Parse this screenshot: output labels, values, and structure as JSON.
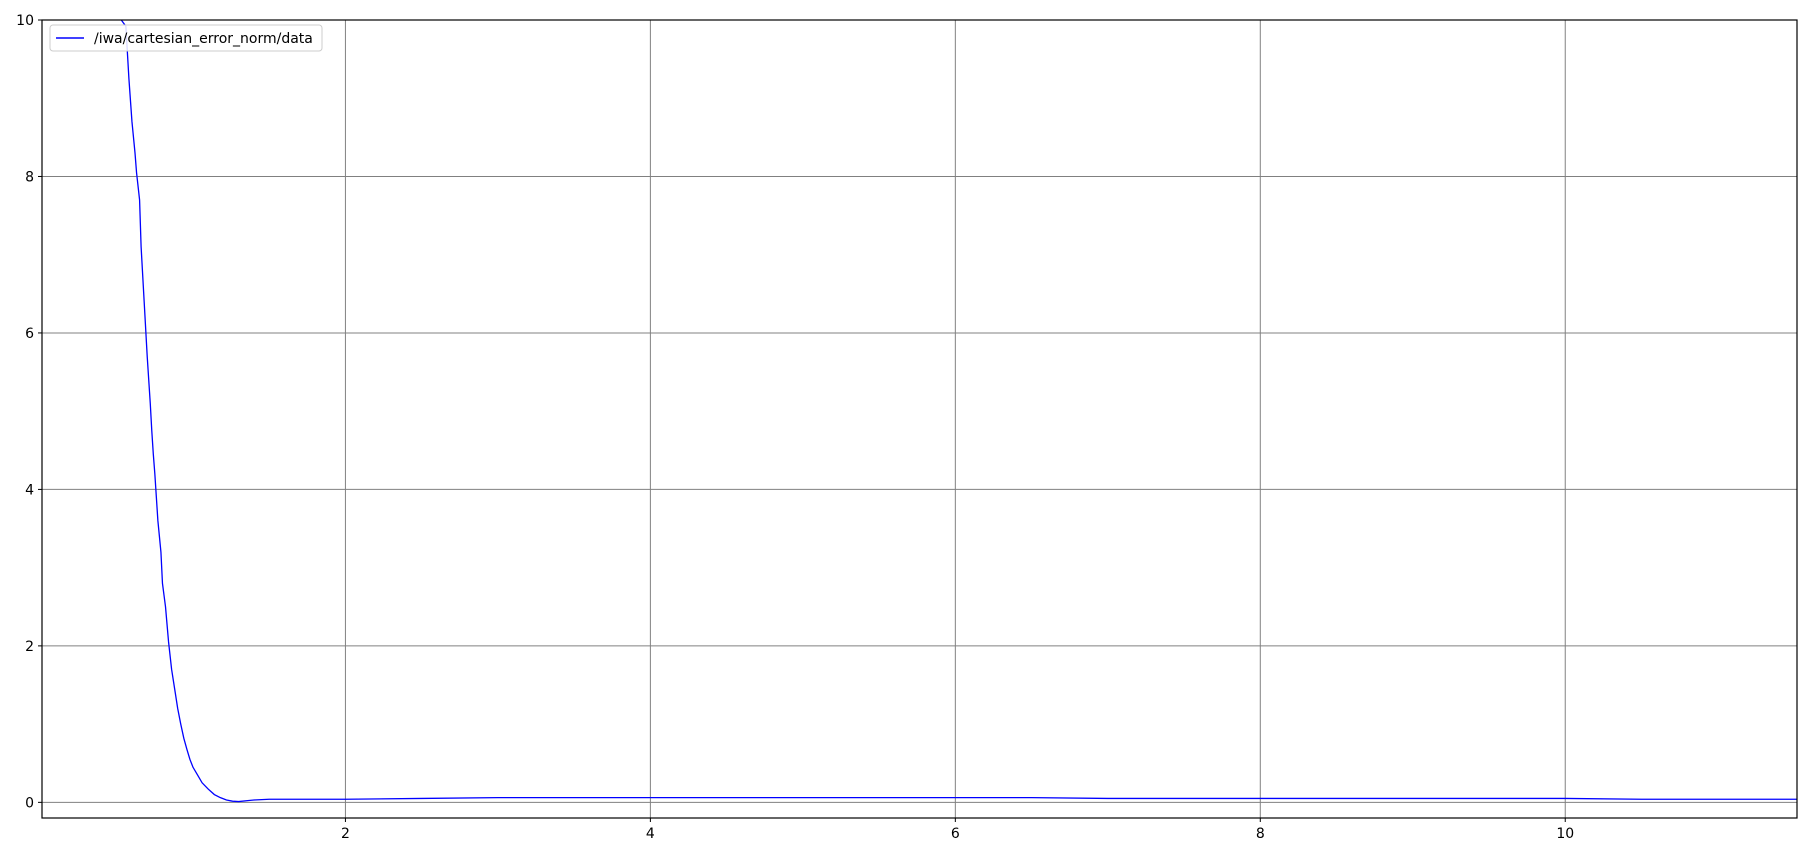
{
  "chart_data": {
    "type": "line",
    "title": "",
    "xlabel": "",
    "ylabel": "",
    "xlim": [
      0.01,
      11.52
    ],
    "ylim": [
      -0.2,
      10
    ],
    "grid": true,
    "legend_position": "top-left",
    "x_ticks": [
      2,
      4,
      6,
      8,
      10
    ],
    "x_tick_labels": [
      "2",
      "4",
      "6",
      "8",
      "10"
    ],
    "y_ticks": [
      0,
      2,
      4,
      6,
      8,
      10
    ],
    "y_tick_labels": [
      "0",
      "2",
      "4",
      "6",
      "8",
      "10"
    ],
    "colors": {
      "series": "#0000ff",
      "grid": "#808080",
      "axes": "#000000",
      "legend_border": "#cccccc"
    },
    "series": [
      {
        "name": "/iwa/cartesian_error_norm/data",
        "x": [
          0.53,
          0.56,
          0.58,
          0.6,
          0.62,
          0.63,
          0.65,
          0.66,
          0.68,
          0.7,
          0.71,
          0.72,
          0.73,
          0.74,
          0.75,
          0.76,
          0.77,
          0.79,
          0.8,
          0.82,
          0.84,
          0.86,
          0.88,
          0.9,
          0.92,
          0.94,
          0.96,
          0.98,
          1.0,
          1.03,
          1.06,
          1.1,
          1.14,
          1.18,
          1.22,
          1.26,
          1.3,
          1.35,
          1.4,
          1.5,
          1.7,
          2.0,
          2.5,
          3.0,
          3.5,
          4.0,
          4.5,
          5.0,
          5.5,
          6.0,
          6.5,
          7.0,
          7.5,
          8.0,
          8.5,
          9.0,
          9.5,
          10.0,
          10.5,
          11.0,
          11.52
        ],
        "y": [
          10.0,
          9.92,
          9.25,
          8.7,
          8.3,
          8.05,
          7.7,
          7.1,
          6.4,
          5.7,
          5.4,
          5.1,
          4.75,
          4.45,
          4.2,
          3.9,
          3.6,
          3.2,
          2.8,
          2.5,
          2.05,
          1.7,
          1.45,
          1.2,
          1.0,
          0.82,
          0.68,
          0.55,
          0.45,
          0.35,
          0.25,
          0.17,
          0.1,
          0.06,
          0.03,
          0.015,
          0.01,
          0.02,
          0.03,
          0.04,
          0.04,
          0.04,
          0.05,
          0.06,
          0.06,
          0.06,
          0.06,
          0.06,
          0.06,
          0.06,
          0.06,
          0.05,
          0.05,
          0.05,
          0.05,
          0.05,
          0.05,
          0.05,
          0.04,
          0.04,
          0.04
        ]
      }
    ]
  }
}
